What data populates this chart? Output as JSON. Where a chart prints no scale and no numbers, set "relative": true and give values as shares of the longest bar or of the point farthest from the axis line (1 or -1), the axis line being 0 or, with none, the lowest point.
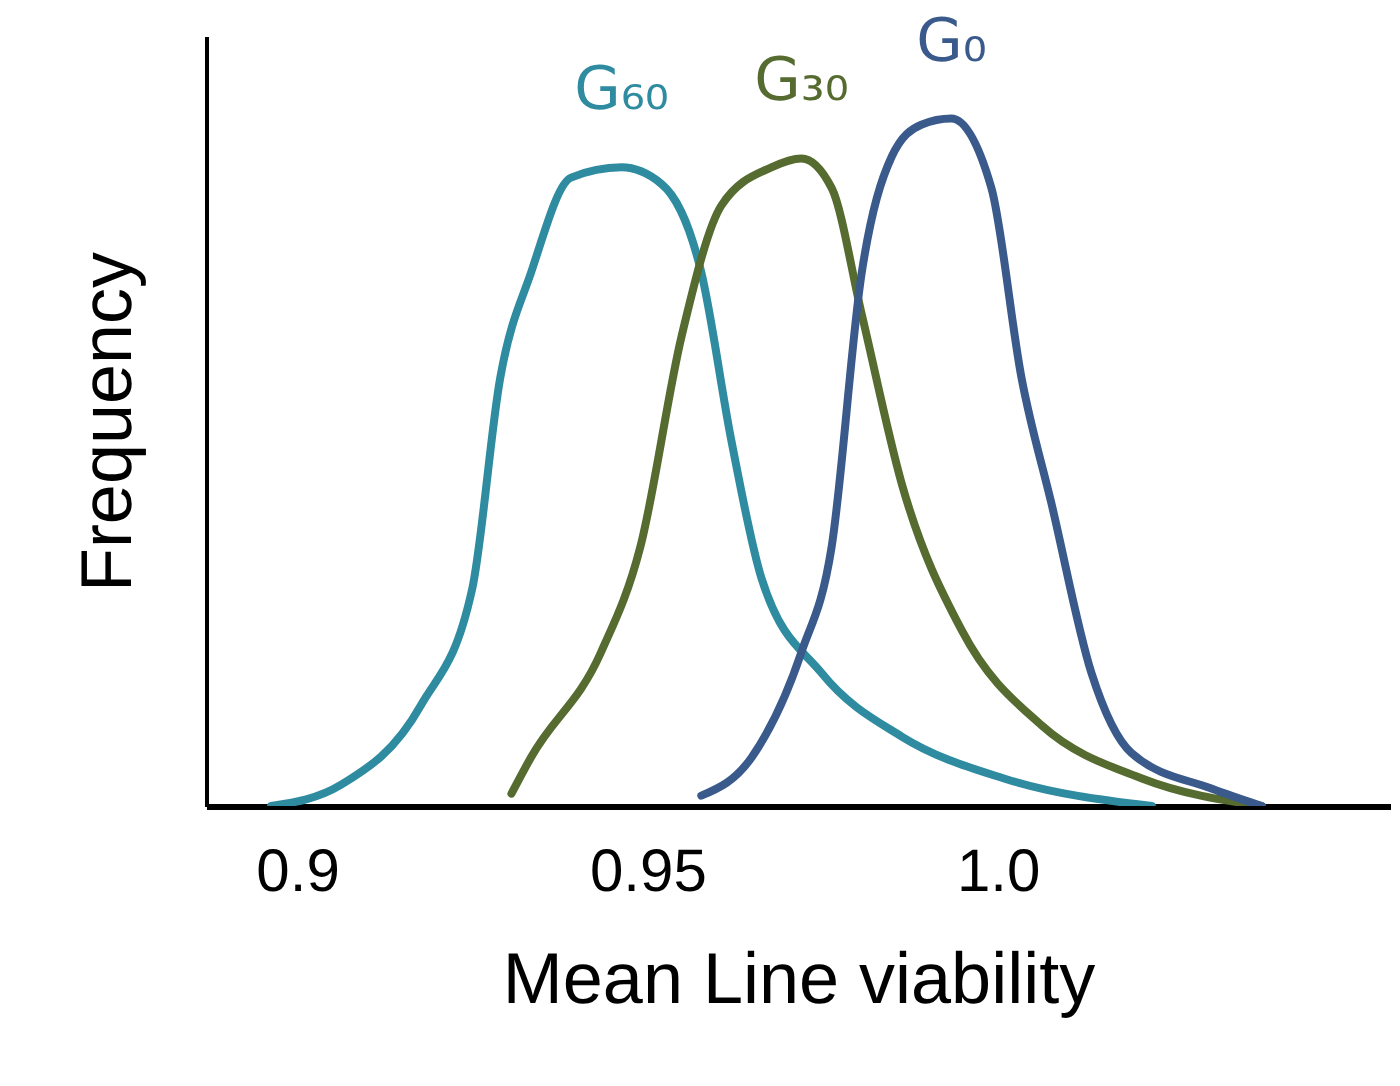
{
  "chart_data": {
    "type": "line",
    "xlabel": "Mean Line viability",
    "ylabel": "Frequency",
    "relative": true,
    "xlim": [
      0.887,
      1.056
    ],
    "xticks": [
      0.9,
      0.95,
      {
        "value": 1.0,
        "label": "1.0"
      }
    ],
    "grid": false,
    "marker": "none",
    "line_style": "solid",
    "series": [
      {
        "name": "G₆₀",
        "color": "#2e8ba0",
        "x": [
          0.8963,
          0.9063,
          0.9177,
          0.925,
          0.929,
          0.9334,
          0.9391,
          0.9463,
          0.952,
          0.9577,
          0.962,
          0.9663,
          0.9749,
          0.9863,
          1.0009,
          1.022
        ],
        "values": [
          0,
          0.031,
          0.147,
          0.316,
          0.623,
          0.776,
          0.914,
          0.929,
          0.905,
          0.776,
          0.531,
          0.331,
          0.193,
          0.101,
          0.04,
          0
        ]
      },
      {
        "name": "G₃₀",
        "color": "#556b2f",
        "x": [
          0.9306,
          0.9334,
          0.9434,
          0.949,
          0.9549,
          0.9606,
          0.9677,
          0.972,
          0.9763,
          0.9806,
          0.9863,
          0.9949,
          1.0063,
          1.0206,
          1.0377
        ],
        "values": [
          0.018,
          0.071,
          0.224,
          0.377,
          0.684,
          0.874,
          0.929,
          0.942,
          0.899,
          0.715,
          0.469,
          0.255,
          0.117,
          0.04,
          0
        ]
      },
      {
        "name": "G₀",
        "color": "#3a5a8c",
        "x": [
          0.9577,
          0.9649,
          0.972,
          0.9763,
          0.9806,
          0.9849,
          0.9891,
          0.9934,
          0.9991,
          1.0034,
          1.0077,
          1.0134,
          1.0191,
          1.0306,
          1.0377
        ],
        "values": [
          0.015,
          0.071,
          0.224,
          0.377,
          0.776,
          0.945,
          0.991,
          1.0,
          0.899,
          0.623,
          0.439,
          0.193,
          0.077,
          0.025,
          0
        ]
      }
    ]
  }
}
